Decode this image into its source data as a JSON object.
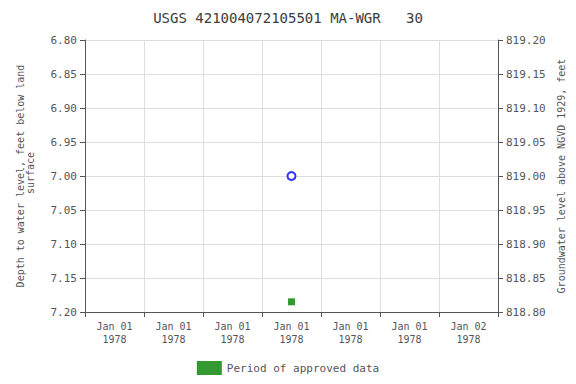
{
  "chart_data": {
    "type": "scatter",
    "title": "USGS 421004072105501 MA-WGR   30",
    "ylabel": "Depth to water level, feet below land\n surface",
    "y2label": "Groundwater level above NGVD 1929, feet",
    "categories": [
      "Jan 01\n1978",
      "Jan 01\n1978",
      "Jan 01\n1978",
      "Jan 01\n1978",
      "Jan 01\n1978",
      "Jan 01\n1978",
      "Jan 02\n1978"
    ],
    "ylim": [
      7.2,
      6.8
    ],
    "yticks": [
      {
        "value": 6.8,
        "label": "6.80"
      },
      {
        "value": 6.85,
        "label": "6.85"
      },
      {
        "value": 6.9,
        "label": "6.90"
      },
      {
        "value": 6.95,
        "label": "6.95"
      },
      {
        "value": 7.0,
        "label": "7.00"
      },
      {
        "value": 7.05,
        "label": "7.05"
      },
      {
        "value": 7.1,
        "label": "7.10"
      },
      {
        "value": 7.15,
        "label": "7.15"
      },
      {
        "value": 7.2,
        "label": "7.20"
      }
    ],
    "y2lim": [
      818.8,
      819.2
    ],
    "y2ticks": [
      {
        "value": 818.8,
        "label": "818.80"
      },
      {
        "value": 818.85,
        "label": "818.85"
      },
      {
        "value": 818.9,
        "label": "818.90"
      },
      {
        "value": 818.95,
        "label": "818.95"
      },
      {
        "value": 819.0,
        "label": "819.00"
      },
      {
        "value": 819.05,
        "label": "819.05"
      },
      {
        "value": 819.1,
        "label": "819.10"
      },
      {
        "value": 819.15,
        "label": "819.15"
      },
      {
        "value": 819.2,
        "label": "819.20"
      }
    ],
    "series": [
      {
        "color": "blue",
        "marker": "circle_open",
        "values": [
          null,
          null,
          null,
          7.0,
          null,
          null,
          null
        ]
      },
      {
        "name": "Period of approved data",
        "color": "#008000",
        "marker": "square",
        "values": [
          null,
          null,
          null,
          7.185,
          null,
          null,
          null
        ]
      }
    ],
    "grid": true,
    "legend": "bottom"
  }
}
